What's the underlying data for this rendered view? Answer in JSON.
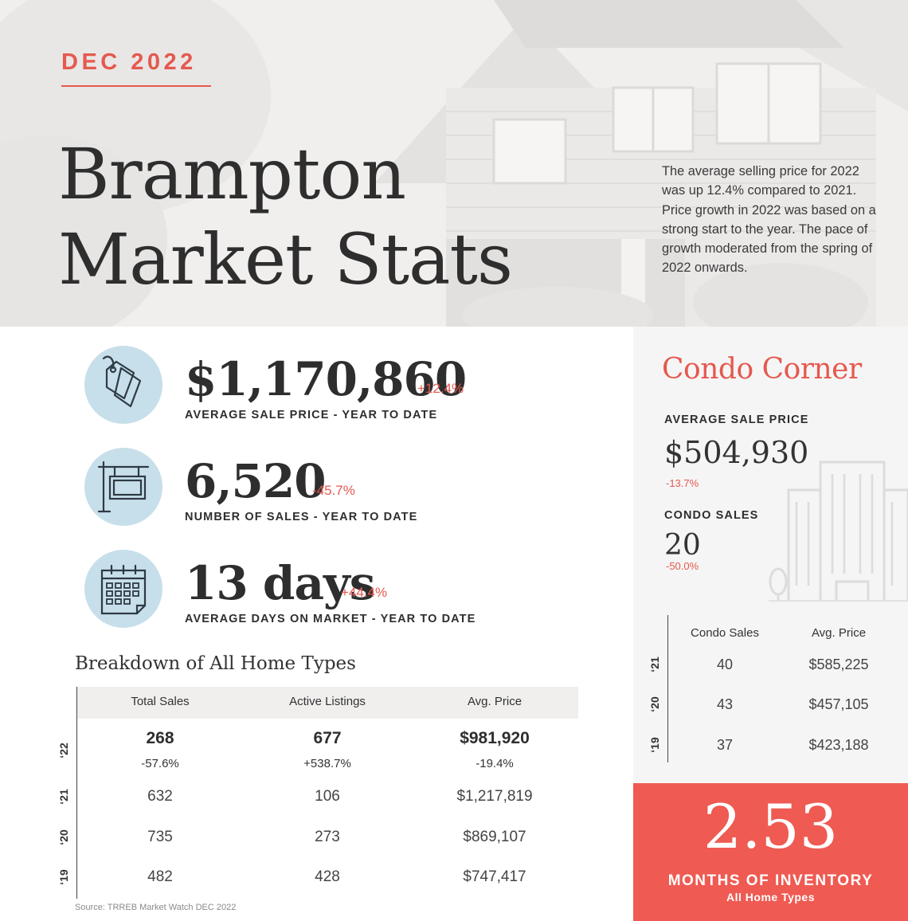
{
  "header": {
    "date": "DEC 2022",
    "title_line1": "Brampton",
    "title_line2": "Market Stats",
    "intro": "The average selling price for 2022 was up 12.4% compared to 2021.  Price growth in 2022 was based on a strong start to the year. The pace of growth moderated from the spring of 2022 onwards."
  },
  "stats": [
    {
      "icon": "price-tag-icon",
      "value": "$1,170,860",
      "change": "+12.4%",
      "label": "AVERAGE SALE PRICE - YEAR TO DATE"
    },
    {
      "icon": "sale-sign-icon",
      "value": "6,520",
      "change": "-45.7%",
      "label": "NUMBER OF SALES - YEAR TO DATE"
    },
    {
      "icon": "calendar-icon",
      "value": "13 days",
      "change": "+44.4%",
      "label": "AVERAGE DAYS ON MARKET - YEAR TO DATE"
    }
  ],
  "breakdown": {
    "title": "Breakdown of All Home Types",
    "columns": [
      "Total Sales",
      "Active Listings",
      "Avg. Price"
    ],
    "rows": [
      {
        "year": "‘22",
        "values": [
          "268",
          "677",
          "$981,920"
        ],
        "changes": [
          "-57.6%",
          "+538.7%",
          "-19.4%"
        ]
      },
      {
        "year": "‘21",
        "values": [
          "632",
          "106",
          "$1,217,819"
        ]
      },
      {
        "year": "‘20",
        "values": [
          "735",
          "273",
          "$869,107"
        ]
      },
      {
        "year": "‘19",
        "values": [
          "482",
          "428",
          "$747,417"
        ]
      }
    ],
    "source": "Source: TRREB Market Watch DEC 2022"
  },
  "condo": {
    "title": "Condo Corner",
    "avg_price_label": "AVERAGE SALE PRICE",
    "avg_price": "$504,930",
    "avg_price_change": "-13.7%",
    "sales_label": "CONDO SALES",
    "sales": "20",
    "sales_change": "-50.0%",
    "columns": [
      "Condo Sales",
      "Avg. Price"
    ],
    "rows": [
      {
        "year": "‘21",
        "values": [
          "40",
          "$585,225"
        ]
      },
      {
        "year": "‘20",
        "values": [
          "43",
          "$457,105"
        ]
      },
      {
        "year": "‘19",
        "values": [
          "37",
          "$423,188"
        ]
      }
    ]
  },
  "inventory": {
    "value": "2.53",
    "label": "MONTHS OF INVENTORY",
    "sublabel": "All Home Types"
  },
  "colors": {
    "accent": "#e5594f",
    "inventory_bg": "#ef5a52",
    "icon_circle": "#c7dfea",
    "text_dark": "#2e2e2e"
  }
}
